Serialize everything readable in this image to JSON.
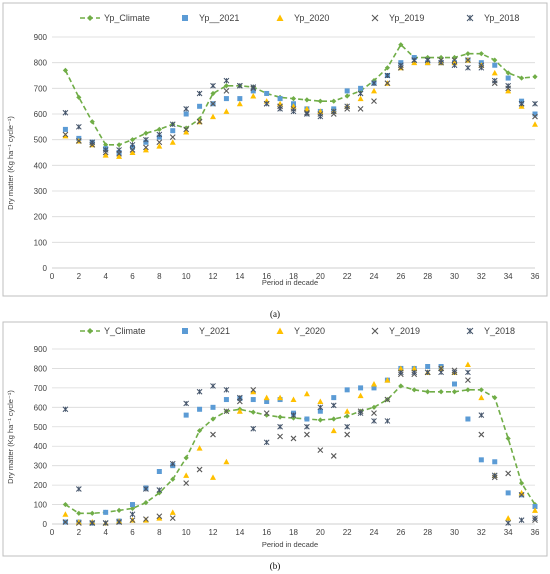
{
  "colors": {
    "climate": "#70ad47",
    "y2021": "#5b9bd5",
    "y2020": "#ffc000",
    "y2019": "#595959",
    "y2018": "#44546a"
  },
  "chart_data": [
    {
      "type": "scatter",
      "caption": "(a)",
      "xlabel": "Period in decade",
      "ylabel": "Dry matter (Kg ha⁻¹ cycle⁻¹)",
      "xlim": [
        0,
        36
      ],
      "ylim": [
        0,
        900
      ],
      "xticks": [
        0,
        2,
        4,
        6,
        8,
        10,
        12,
        14,
        16,
        18,
        20,
        22,
        24,
        26,
        28,
        30,
        32,
        34,
        36
      ],
      "yticks": [
        0,
        100,
        200,
        300,
        400,
        500,
        600,
        700,
        800,
        900
      ],
      "grid": true,
      "legend_position": "top",
      "x": [
        1,
        2,
        3,
        4,
        5,
        6,
        7,
        8,
        9,
        10,
        11,
        12,
        13,
        14,
        15,
        16,
        17,
        18,
        19,
        20,
        21,
        22,
        23,
        24,
        25,
        26,
        27,
        28,
        29,
        30,
        31,
        32,
        33,
        34,
        35,
        36
      ],
      "series": [
        {
          "name": "Yp_Climate",
          "marker": "line-diamond",
          "values": [
            770,
            665,
            570,
            480,
            480,
            500,
            525,
            540,
            560,
            545,
            580,
            680,
            710,
            710,
            705,
            680,
            665,
            660,
            655,
            650,
            650,
            670,
            690,
            730,
            780,
            870,
            820,
            820,
            820,
            820,
            835,
            835,
            810,
            760,
            740,
            745
          ]
        },
        {
          "name": "Yp__2021",
          "marker": "square",
          "values": [
            540,
            505,
            490,
            465,
            450,
            470,
            490,
            510,
            535,
            600,
            630,
            640,
            660,
            660,
            690,
            680,
            660,
            640,
            620,
            610,
            620,
            690,
            700,
            720,
            750,
            800,
            820,
            800,
            800,
            800,
            810,
            800,
            790,
            740,
            650,
            600
          ]
        },
        {
          "name": "Yp_2020",
          "marker": "triangle",
          "values": [
            515,
            495,
            480,
            440,
            435,
            450,
            460,
            475,
            490,
            530,
            570,
            590,
            610,
            640,
            670,
            650,
            640,
            630,
            620,
            610,
            610,
            630,
            660,
            690,
            720,
            780,
            800,
            800,
            800,
            800,
            810,
            790,
            760,
            690,
            630,
            560
          ]
        },
        {
          "name": "Yp_2019",
          "marker": "x",
          "values": [
            520,
            495,
            480,
            450,
            445,
            460,
            470,
            490,
            510,
            540,
            570,
            640,
            690,
            710,
            700,
            640,
            630,
            620,
            605,
            600,
            600,
            620,
            620,
            650,
            720,
            780,
            810,
            810,
            810,
            810,
            810,
            790,
            720,
            700,
            640,
            590
          ]
        },
        {
          "name": "Yp_2018",
          "marker": "star",
          "values": [
            605,
            550,
            490,
            460,
            460,
            480,
            500,
            520,
            560,
            620,
            680,
            710,
            730,
            710,
            705,
            640,
            620,
            610,
            600,
            590,
            610,
            630,
            680,
            720,
            750,
            790,
            810,
            810,
            800,
            790,
            780,
            780,
            730,
            710,
            640,
            640
          ]
        }
      ]
    },
    {
      "type": "scatter",
      "caption": "(b)",
      "xlabel": "Period in decade",
      "ylabel": "Dry matter (Kg ha⁻¹ cycle⁻¹)",
      "xlim": [
        0,
        36
      ],
      "ylim": [
        0,
        900
      ],
      "xticks": [
        0,
        2,
        4,
        6,
        8,
        10,
        12,
        14,
        16,
        18,
        20,
        22,
        24,
        26,
        28,
        30,
        32,
        34,
        36
      ],
      "yticks": [
        0,
        100,
        200,
        300,
        400,
        500,
        600,
        700,
        800,
        900
      ],
      "grid": true,
      "legend_position": "top",
      "x": [
        1,
        2,
        3,
        4,
        5,
        6,
        7,
        8,
        9,
        10,
        11,
        12,
        13,
        14,
        15,
        16,
        17,
        18,
        19,
        20,
        21,
        22,
        23,
        24,
        25,
        26,
        27,
        28,
        29,
        30,
        31,
        32,
        33,
        34,
        35,
        36
      ],
      "series": [
        {
          "name": "Y_Climate",
          "marker": "line-diamond",
          "values": [
            100,
            55,
            55,
            60,
            70,
            80,
            110,
            160,
            230,
            340,
            480,
            540,
            580,
            590,
            575,
            560,
            550,
            545,
            540,
            535,
            540,
            555,
            580,
            600,
            640,
            710,
            690,
            680,
            680,
            680,
            690,
            690,
            650,
            440,
            210,
            100
          ]
        },
        {
          "name": "Y_2021",
          "marker": "square",
          "values": [
            10,
            10,
            5,
            60,
            15,
            100,
            185,
            270,
            300,
            560,
            590,
            600,
            640,
            645,
            640,
            630,
            640,
            570,
            540,
            580,
            650,
            690,
            700,
            700,
            740,
            800,
            800,
            810,
            810,
            720,
            540,
            330,
            320,
            160,
            150,
            90
          ]
        },
        {
          "name": "Y_2020",
          "marker": "triangle",
          "values": [
            50,
            10,
            10,
            5,
            15,
            20,
            20,
            30,
            60,
            250,
            390,
            240,
            320,
            580,
            680,
            650,
            650,
            640,
            670,
            630,
            480,
            580,
            660,
            720,
            740,
            800,
            800,
            780,
            800,
            780,
            820,
            650,
            250,
            30,
            160,
            70
          ]
        },
        {
          "name": "Y_2019",
          "marker": "x",
          "values": [
            10,
            5,
            5,
            5,
            10,
            20,
            25,
            40,
            30,
            210,
            280,
            460,
            580,
            630,
            690,
            570,
            450,
            440,
            460,
            380,
            350,
            460,
            580,
            570,
            640,
            770,
            770,
            780,
            800,
            790,
            740,
            460,
            240,
            260,
            150,
            20
          ]
        },
        {
          "name": "Y_2018",
          "marker": "star",
          "values": [
            590,
            180,
            5,
            5,
            10,
            50,
            180,
            175,
            310,
            620,
            680,
            710,
            690,
            650,
            490,
            420,
            500,
            560,
            500,
            600,
            610,
            500,
            570,
            530,
            530,
            780,
            780,
            780,
            780,
            780,
            780,
            560,
            250,
            5,
            20,
            30
          ]
        }
      ]
    }
  ]
}
